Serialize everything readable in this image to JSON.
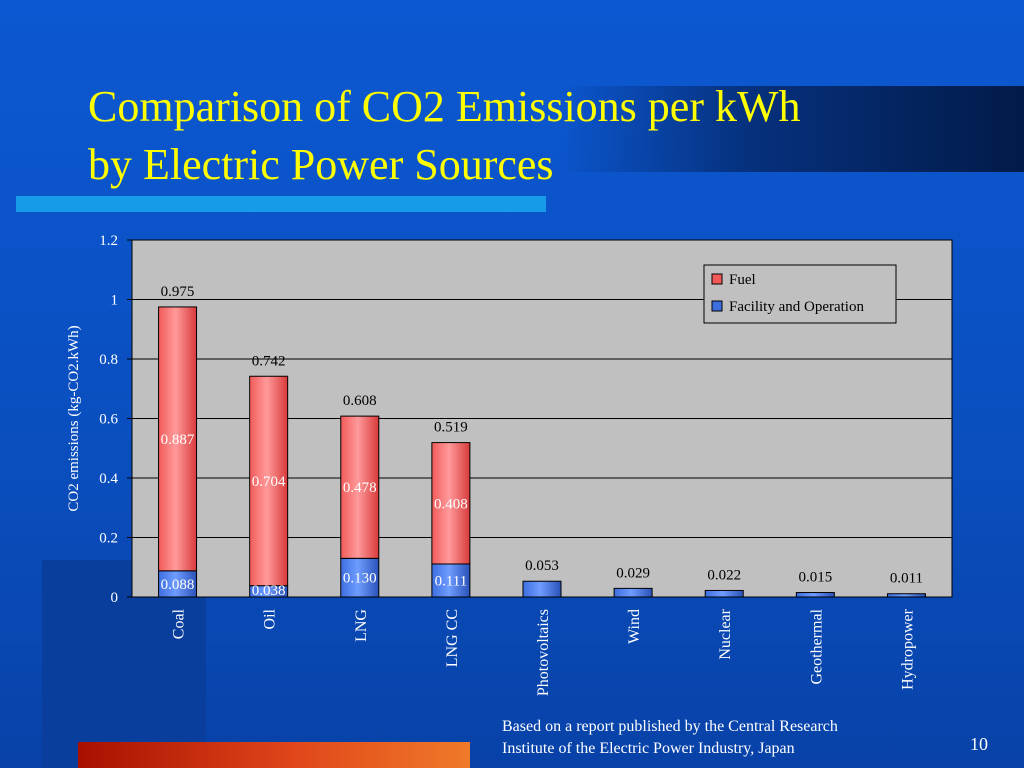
{
  "slide": {
    "title_line1": "Comparison of  CO2 Emissions per kWh",
    "title_line2": "by Electric Power Sources",
    "footnote_line1": "Based on a report published by the Central Research",
    "footnote_line2": "Institute of the Electric Power Industry, Japan",
    "page_number": "10"
  },
  "chart_data": {
    "type": "bar",
    "stacked": true,
    "title": "",
    "xlabel": "",
    "ylabel": "CO2 emissions (kg-CO2.kWh)",
    "ylim": [
      0,
      1.2
    ],
    "yticks": [
      "0",
      "0.2",
      "0.4",
      "0.6",
      "0.8",
      "1",
      "1.2"
    ],
    "grid": true,
    "legend_position": "top-right",
    "categories": [
      "Coal",
      "Oil",
      "LNG",
      "LNG CC",
      "Photovoltaics",
      "Wind",
      "Nuclear",
      "Geothermal",
      "Hydropower"
    ],
    "totals": [
      "0.975",
      "0.742",
      "0.608",
      "0.519",
      "0.053",
      "0.029",
      "0.022",
      "0.015",
      "0.011"
    ],
    "series": [
      {
        "name": "Facility and Operation",
        "color": "#3d6ee0",
        "values": [
          0.088,
          0.038,
          0.13,
          0.111,
          0.053,
          0.029,
          0.022,
          0.015,
          0.011
        ],
        "labels": [
          "0.088",
          "0.038",
          "0.130",
          "0.111",
          "",
          "",
          "",
          "",
          ""
        ]
      },
      {
        "name": "Fuel",
        "color": "#f25a5a",
        "values": [
          0.887,
          0.704,
          0.478,
          0.408,
          0,
          0,
          0,
          0,
          0
        ],
        "labels": [
          "0.887",
          "0.704",
          "0.478",
          "0.408",
          "",
          "",
          "",
          "",
          ""
        ]
      }
    ]
  }
}
